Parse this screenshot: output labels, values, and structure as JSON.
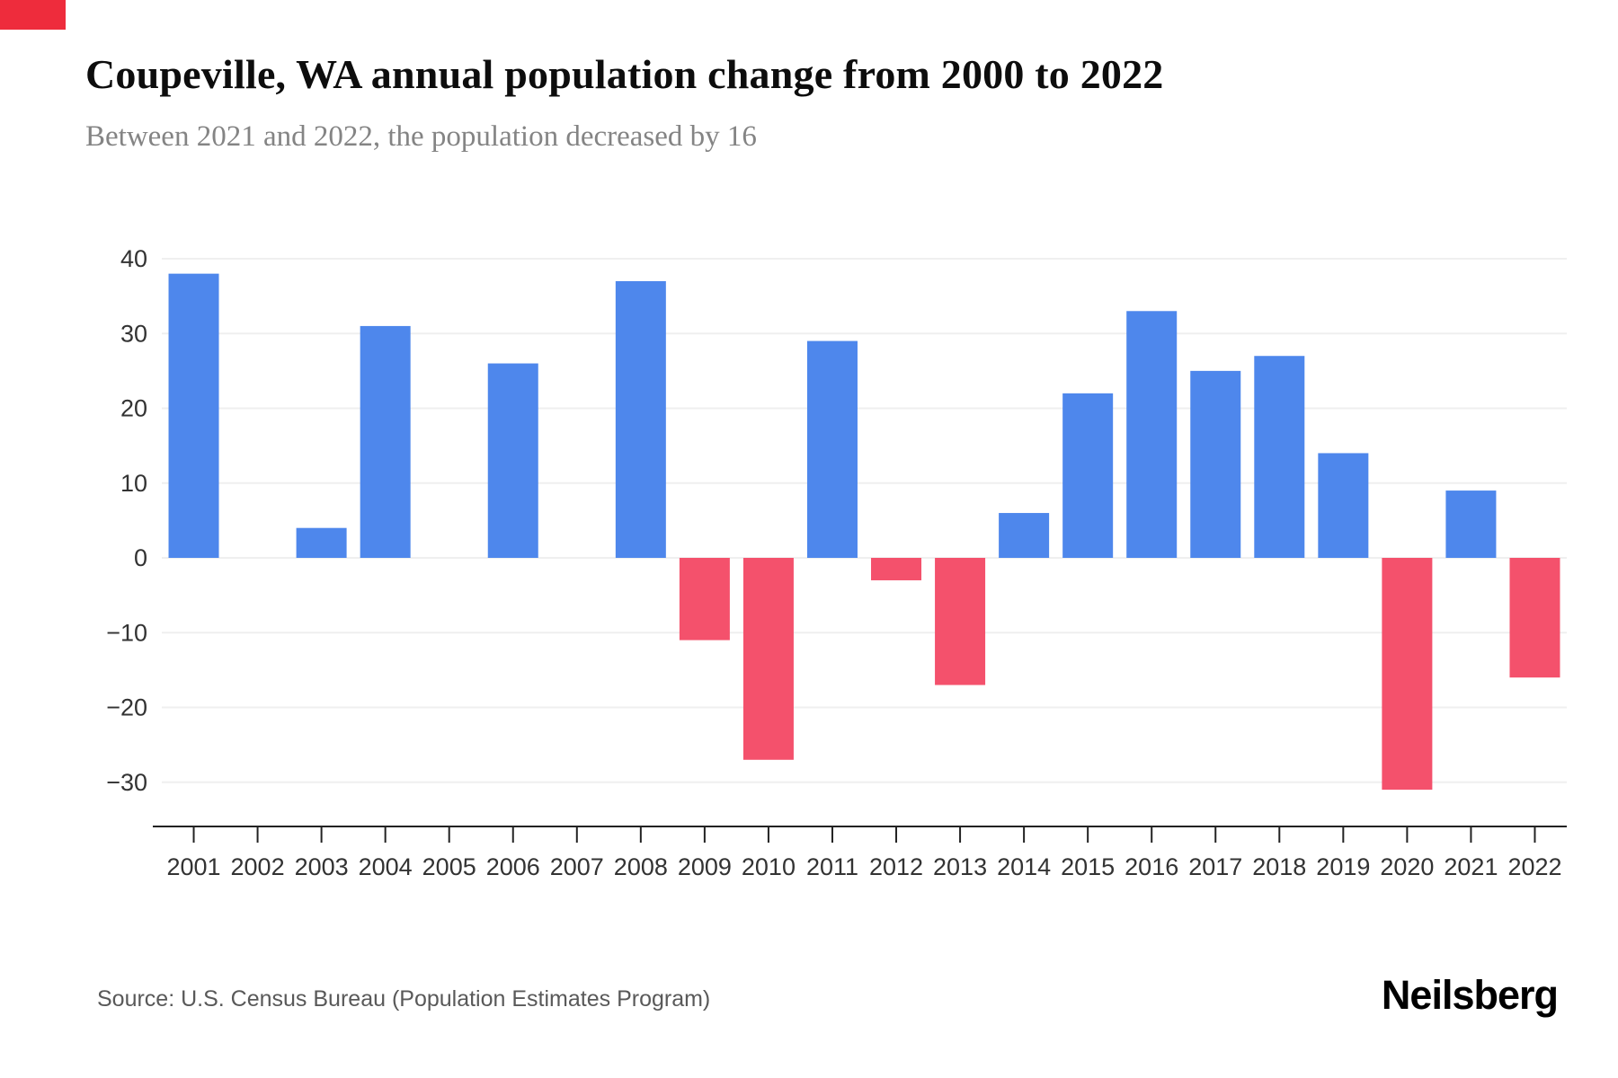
{
  "chart_data": {
    "type": "bar",
    "title": "Coupeville, WA annual population change from 2000 to 2022",
    "subtitle": "Between 2021 and 2022, the population decreased by 16",
    "categories": [
      "2001",
      "2002",
      "2003",
      "2004",
      "2005",
      "2006",
      "2007",
      "2008",
      "2009",
      "2010",
      "2011",
      "2012",
      "2013",
      "2014",
      "2015",
      "2016",
      "2017",
      "2018",
      "2019",
      "2020",
      "2021",
      "2022"
    ],
    "values": [
      38,
      0,
      4,
      31,
      0,
      26,
      0,
      37,
      -11,
      -27,
      29,
      -3,
      -17,
      6,
      22,
      33,
      25,
      27,
      14,
      -31,
      9,
      -16
    ],
    "xlabel": "",
    "ylabel": "",
    "ylim": [
      -35,
      42
    ],
    "yticks": [
      40,
      30,
      20,
      10,
      0,
      -10,
      -20,
      -30
    ],
    "grid": "horizontal",
    "legend": "none",
    "colors": {
      "positive": "#4e87ec",
      "negative": "#f4516c"
    }
  },
  "footer": {
    "source": "Source: U.S. Census Bureau (Population Estimates Program)",
    "brand": "Neilsberg"
  },
  "colors": {
    "accent": "#ee2c3c",
    "grid": "#efefef",
    "axis": "#222222",
    "tick_label": "#333333"
  }
}
